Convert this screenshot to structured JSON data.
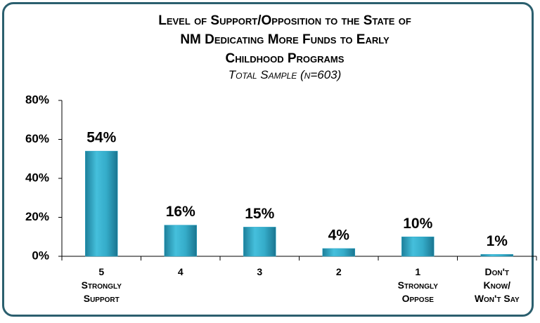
{
  "chart_data": {
    "type": "bar",
    "title": "Level of Support/Opposition to the State of\nNM Dedicating More Funds to Early\nChildhood Programs",
    "subtitle": "Total Sample (n=603)",
    "categories": [
      "5\nStrongly\nSupport",
      "4",
      "3",
      "2",
      "1\nStrongly\nOppose",
      "Don't\nKnow/\nWon't Say"
    ],
    "values": [
      54,
      16,
      15,
      4,
      10,
      1
    ],
    "value_labels": [
      "54%",
      "16%",
      "15%",
      "4%",
      "10%",
      "1%"
    ],
    "color": "#2fa9c9",
    "ylim": [
      0,
      80
    ],
    "yticks": [
      {
        "value": 0,
        "label": "0%"
      },
      {
        "value": 20,
        "label": "20%"
      },
      {
        "value": 40,
        "label": "40%"
      },
      {
        "value": 60,
        "label": "60%"
      },
      {
        "value": 80,
        "label": "80%"
      }
    ]
  }
}
